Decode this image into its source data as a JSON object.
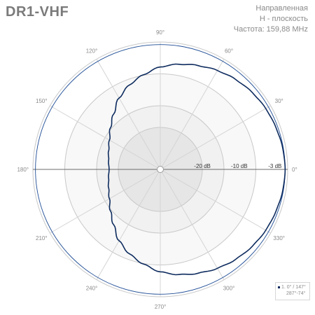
{
  "title": "DR1-VHF",
  "info": {
    "line1": "Направленная",
    "line2": "H - плоскость",
    "line3": "Частота: 159,88 MHz"
  },
  "legend": {
    "line1": "1. 0° / 147°",
    "line2": "287°-74°"
  },
  "colors": {
    "pattern": "#0d2b5e",
    "reference": "#1f4d96",
    "grid": "#c8c8c8",
    "text": "#8a8a8a"
  },
  "chart_data": {
    "type": "polar",
    "angle_ticks": [
      {
        "angle": 0,
        "label": "0°"
      },
      {
        "angle": 30,
        "label": "30°"
      },
      {
        "angle": 60,
        "label": "60°"
      },
      {
        "angle": 90,
        "label": "90°"
      },
      {
        "angle": 120,
        "label": "120°"
      },
      {
        "angle": 150,
        "label": "150°"
      },
      {
        "angle": 180,
        "label": "180°"
      },
      {
        "angle": 210,
        "label": "210°"
      },
      {
        "angle": 240,
        "label": "240°"
      },
      {
        "angle": 270,
        "label": "270°"
      },
      {
        "angle": 300,
        "label": "300°"
      },
      {
        "angle": 330,
        "label": "330°"
      }
    ],
    "radial_ticks": [
      {
        "db": -3,
        "label": "-3 dB"
      },
      {
        "db": -10,
        "label": "-10 dB"
      },
      {
        "db": -20,
        "label": "-20 dB"
      }
    ],
    "series": [
      {
        "angles_deg": [
          0,
          10,
          20,
          30,
          40,
          50,
          60,
          70,
          80,
          90,
          100,
          110,
          120,
          130,
          140,
          150,
          160,
          170,
          180,
          190,
          200,
          210,
          220,
          230,
          240,
          250,
          260,
          270,
          280,
          290,
          300,
          310,
          320,
          330,
          340,
          350
        ],
        "relative_amplitude": [
          1.0,
          0.995,
          0.985,
          0.975,
          0.96,
          0.94,
          0.915,
          0.885,
          0.855,
          0.82,
          0.77,
          0.72,
          0.66,
          0.58,
          0.52,
          0.47,
          0.44,
          0.42,
          0.41,
          0.42,
          0.44,
          0.47,
          0.52,
          0.58,
          0.66,
          0.72,
          0.77,
          0.82,
          0.855,
          0.885,
          0.915,
          0.94,
          0.96,
          0.975,
          0.985,
          0.995
        ]
      }
    ]
  }
}
